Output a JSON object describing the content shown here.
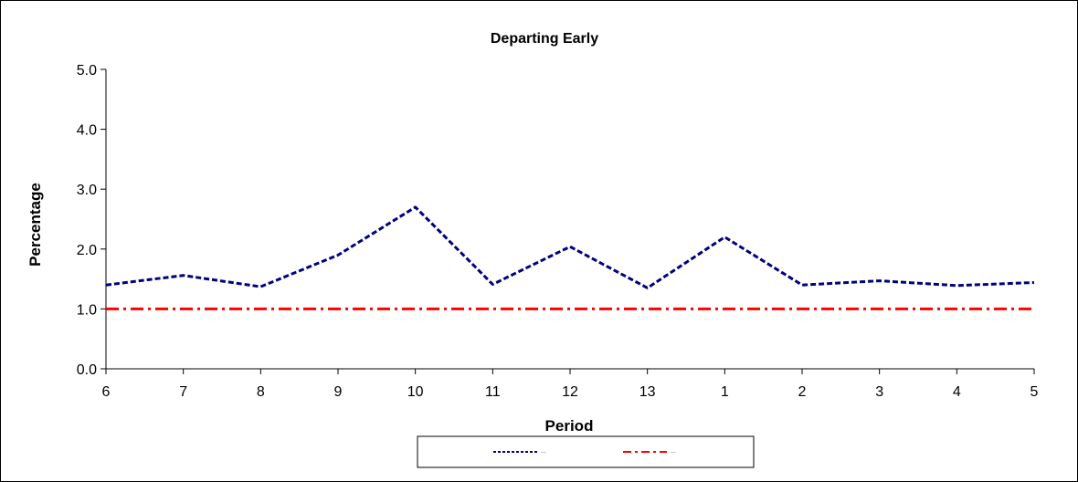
{
  "chart_data": {
    "type": "line",
    "title": "Departing Early",
    "xlabel": "Period",
    "ylabel": "Percentage",
    "categories": [
      "6",
      "7",
      "8",
      "9",
      "10",
      "11",
      "12",
      "13",
      "1",
      "2",
      "3",
      "4",
      "5"
    ],
    "ylim": [
      0,
      5
    ],
    "yticks": [
      "0.0",
      "1.0",
      "2.0",
      "3.0",
      "4.0",
      "5.0"
    ],
    "grid": false,
    "legend_position": "bottom",
    "series": [
      {
        "name": "",
        "legend_text": "--",
        "color": "#000080",
        "dash": "dashed",
        "values": [
          1.4,
          1.56,
          1.37,
          1.9,
          2.7,
          1.41,
          2.04,
          1.35,
          2.2,
          1.4,
          1.47,
          1.39,
          1.44
        ]
      },
      {
        "name": "",
        "legend_text": "--",
        "color": "#ff0000",
        "dash": "dash-dot",
        "values": [
          1.0,
          1.0,
          1.0,
          1.0,
          1.0,
          1.0,
          1.0,
          1.0,
          1.0,
          1.0,
          1.0,
          1.0,
          1.0
        ]
      }
    ]
  }
}
